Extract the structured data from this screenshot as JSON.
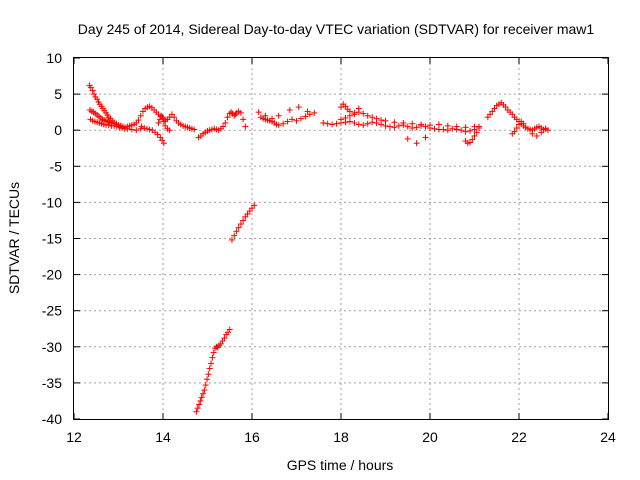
{
  "chart_data": {
    "type": "scatter",
    "title": "Day 245 of 2014, Sidereal Day-to-day VTEC variation (SDTVAR) for receiver maw1",
    "xlabel": "GPS time / hours",
    "ylabel": "SDTVAR / TECUs",
    "xlim": [
      12,
      24
    ],
    "ylim": [
      -40,
      10
    ],
    "xticks": [
      "12",
      "14",
      "16",
      "18",
      "20",
      "22",
      "24"
    ],
    "yticks": [
      "10",
      "5",
      "0",
      "-5",
      "-10",
      "-15",
      "-20",
      "-25",
      "-30",
      "-35",
      "-40"
    ],
    "grid": true,
    "marker": "+",
    "color": "#ff0000",
    "series": [
      {
        "name": "maw1",
        "x": [
          12.35,
          12.38,
          12.42,
          12.45,
          12.48,
          12.52,
          12.55,
          12.58,
          12.62,
          12.65,
          12.68,
          12.72,
          12.75,
          12.78,
          12.82,
          12.86,
          12.9,
          12.95,
          13.0,
          13.05,
          13.1,
          13.15,
          13.2,
          13.25,
          13.3,
          13.35,
          13.4,
          13.45,
          13.5,
          13.55,
          13.6,
          13.65,
          13.7,
          13.75,
          13.8,
          13.85,
          13.9,
          13.95,
          14.0,
          14.05,
          14.1,
          14.15,
          14.2,
          14.25,
          14.3,
          14.35,
          14.4,
          14.45,
          14.5,
          14.55,
          14.6,
          14.65,
          14.7,
          12.36,
          12.4,
          12.44,
          12.48,
          12.52,
          12.56,
          12.6,
          12.64,
          12.68,
          12.72,
          12.76,
          12.8,
          12.85,
          12.9,
          12.95,
          13.0,
          13.05,
          13.1,
          12.37,
          12.42,
          12.47,
          12.52,
          12.57,
          12.62,
          12.67,
          12.72,
          12.78,
          12.84,
          12.9,
          12.96,
          13.02,
          13.08,
          13.14,
          13.2,
          13.3,
          13.4,
          13.5,
          13.52,
          13.58,
          13.64,
          13.7,
          13.76,
          13.82,
          13.88,
          13.94,
          13.98,
          14.02,
          13.9,
          13.93,
          13.96,
          13.99,
          14.02,
          14.05,
          14.1,
          14.15,
          14.8,
          14.85,
          14.9,
          14.95,
          15.0,
          15.05,
          15.1,
          15.15,
          15.2,
          15.25,
          15.3,
          15.35,
          15.4,
          15.45,
          15.5,
          15.53,
          15.56,
          15.6,
          15.63,
          15.66,
          15.7,
          15.75,
          15.8,
          15.85,
          15.55,
          15.6,
          15.65,
          15.7,
          15.75,
          15.8,
          15.85,
          15.9,
          15.95,
          16.0,
          16.05,
          14.75,
          14.78,
          14.81,
          14.84,
          14.87,
          14.9,
          14.93,
          14.96,
          14.99,
          15.02,
          15.05,
          15.08,
          15.11,
          15.14,
          15.17,
          15.2,
          15.23,
          15.26,
          15.3,
          15.34,
          15.38,
          15.42,
          15.46,
          15.5,
          16.2,
          16.25,
          16.3,
          16.35,
          16.4,
          16.45,
          16.5,
          16.55,
          16.6,
          16.7,
          16.8,
          16.9,
          17.0,
          17.1,
          17.2,
          17.3,
          17.4,
          16.15,
          16.3,
          16.45,
          16.6,
          16.85,
          17.05,
          17.25,
          17.6,
          17.7,
          17.8,
          17.9,
          18.0,
          18.1,
          18.2,
          18.3,
          18.4,
          18.5,
          18.6,
          18.7,
          18.8,
          18.9,
          19.0,
          19.1,
          19.2,
          19.3,
          19.4,
          19.5,
          19.6,
          19.7,
          19.8,
          19.9,
          20.0,
          20.1,
          20.2,
          20.3,
          20.4,
          20.5,
          20.6,
          20.7,
          20.8,
          20.9,
          21.0,
          21.1,
          18.0,
          18.1,
          18.2,
          18.3,
          18.4,
          18.5,
          18.6,
          18.7,
          18.8,
          18.9,
          19.0,
          19.2,
          19.4,
          19.6,
          19.8,
          20.0,
          20.2,
          20.4,
          20.6,
          20.8,
          21.0,
          18.0,
          18.05,
          18.1,
          18.15,
          18.2,
          18.3,
          18.4,
          19.5,
          19.7,
          19.9,
          20.8,
          20.85,
          20.9,
          20.95,
          21.0,
          21.05,
          21.1,
          21.3,
          21.35,
          21.4,
          21.45,
          21.5,
          21.55,
          21.6,
          21.65,
          21.7,
          21.75,
          21.8,
          21.85,
          21.9,
          21.95,
          22.0,
          22.05,
          22.1,
          22.15,
          22.2,
          22.25,
          22.3,
          22.35,
          22.4,
          22.45,
          22.5,
          22.55,
          22.6,
          22.65,
          21.85,
          21.9,
          21.95,
          22.0,
          22.05,
          22.1,
          22.3,
          22.4,
          22.5,
          22.6
        ],
        "y": [
          6.2,
          5.9,
          5.5,
          5.0,
          4.6,
          4.3,
          3.9,
          3.6,
          3.3,
          3.0,
          2.7,
          2.4,
          2.1,
          1.8,
          1.6,
          1.3,
          1.1,
          0.9,
          0.7,
          0.6,
          0.5,
          0.4,
          0.5,
          0.6,
          0.7,
          0.8,
          1.0,
          1.4,
          2.0,
          2.6,
          3.0,
          3.2,
          3.3,
          3.1,
          2.8,
          2.5,
          2.2,
          1.9,
          1.6,
          1.4,
          1.5,
          1.8,
          2.2,
          1.8,
          1.3,
          1.0,
          0.8,
          0.6,
          0.5,
          0.4,
          0.3,
          0.2,
          0.1,
          2.8,
          2.6,
          2.5,
          2.3,
          2.1,
          1.9,
          1.7,
          1.5,
          1.4,
          1.3,
          1.2,
          1.1,
          1.0,
          0.9,
          0.8,
          0.7,
          0.6,
          0.5,
          1.5,
          1.3,
          1.2,
          1.1,
          1.0,
          0.9,
          0.8,
          0.7,
          0.7,
          0.6,
          0.6,
          0.5,
          0.4,
          0.3,
          0.2,
          0.2,
          0.1,
          0.0,
          0.2,
          0.5,
          0.3,
          0.2,
          0.1,
          0.0,
          -0.3,
          -0.6,
          -1.0,
          -1.4,
          -1.8,
          1.0,
          1.5,
          2.0,
          1.8,
          1.2,
          0.6,
          0.2,
          0.0,
          -1.0,
          -0.8,
          -0.5,
          -0.3,
          -0.1,
          0.0,
          0.1,
          0.2,
          0.1,
          0.0,
          0.2,
          0.5,
          1.0,
          1.8,
          2.3,
          2.5,
          2.3,
          2.0,
          2.2,
          2.4,
          2.6,
          2.4,
          1.5,
          0.5,
          -15.2,
          -14.6,
          -14.0,
          -13.5,
          -13.0,
          -12.5,
          -12.0,
          -11.6,
          -11.2,
          -10.8,
          -10.4,
          -39.0,
          -38.5,
          -38.0,
          -37.5,
          -37.0,
          -36.5,
          -36.0,
          -35.3,
          -34.5,
          -33.8,
          -33.0,
          -32.3,
          -31.5,
          -30.8,
          -30.2,
          -30.0,
          -30.1,
          -29.8,
          -29.6,
          -29.2,
          -28.8,
          -28.3,
          -28.0,
          -27.6,
          1.8,
          1.6,
          1.5,
          1.4,
          1.3,
          1.2,
          1.0,
          0.8,
          0.7,
          0.9,
          1.2,
          1.5,
          1.3,
          1.6,
          1.9,
          2.2,
          2.4,
          2.5,
          2.0,
          1.6,
          2.0,
          2.8,
          3.2,
          2.6,
          1.0,
          0.9,
          0.8,
          0.9,
          1.0,
          1.1,
          1.2,
          1.0,
          0.8,
          0.7,
          0.9,
          1.1,
          1.0,
          0.8,
          0.6,
          0.5,
          0.4,
          0.6,
          0.7,
          0.5,
          0.3,
          0.4,
          0.6,
          0.5,
          0.3,
          0.2,
          0.1,
          0.1,
          0.0,
          0.2,
          0.1,
          0.0,
          -0.2,
          -0.1,
          0.1,
          0.3,
          1.5,
          1.7,
          2.0,
          2.2,
          2.5,
          2.3,
          2.0,
          1.8,
          1.6,
          1.4,
          1.3,
          1.1,
          1.0,
          0.9,
          0.8,
          0.7,
          0.8,
          0.6,
          0.5,
          0.4,
          0.5,
          3.2,
          3.6,
          3.3,
          2.9,
          2.6,
          2.4,
          3.0,
          -1.2,
          -1.8,
          -1.0,
          -1.5,
          -1.8,
          -1.7,
          -1.3,
          -0.8,
          -0.3,
          0.5,
          1.8,
          2.2,
          2.6,
          3.0,
          3.4,
          3.6,
          3.8,
          3.5,
          3.2,
          2.8,
          2.5,
          2.2,
          1.8,
          1.5,
          1.2,
          0.9,
          0.6,
          0.4,
          0.2,
          0.1,
          0.0,
          0.2,
          0.4,
          0.5,
          0.3,
          0.1,
          0.2,
          0.0,
          -0.5,
          -0.2,
          0.3,
          0.8,
          1.2,
          0.9,
          -0.5,
          -0.8,
          -0.3,
          0.2
        ]
      }
    ]
  }
}
